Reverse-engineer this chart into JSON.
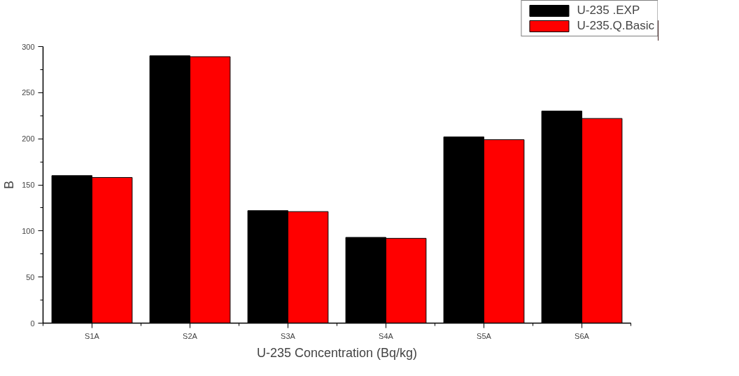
{
  "chart_data": {
    "type": "bar",
    "xlabel": "U-235 Concentration (Bq/kg)",
    "ylabel": "B",
    "categories": [
      "S1A",
      "S2A",
      "S3A",
      "S4A",
      "S5A",
      "S6A"
    ],
    "series": [
      {
        "name": "U-235 .EXP",
        "color": "#000000",
        "values": [
          160,
          290,
          122,
          93,
          202,
          230
        ]
      },
      {
        "name": "U-235.Q.Basic",
        "color": "#ff0000",
        "values": [
          158,
          289,
          121,
          92,
          199,
          222
        ]
      }
    ],
    "ylim": [
      0,
      300
    ],
    "yticks": [
      0,
      50,
      100,
      150,
      200,
      250,
      300
    ],
    "grid": false,
    "legend": "top right"
  }
}
